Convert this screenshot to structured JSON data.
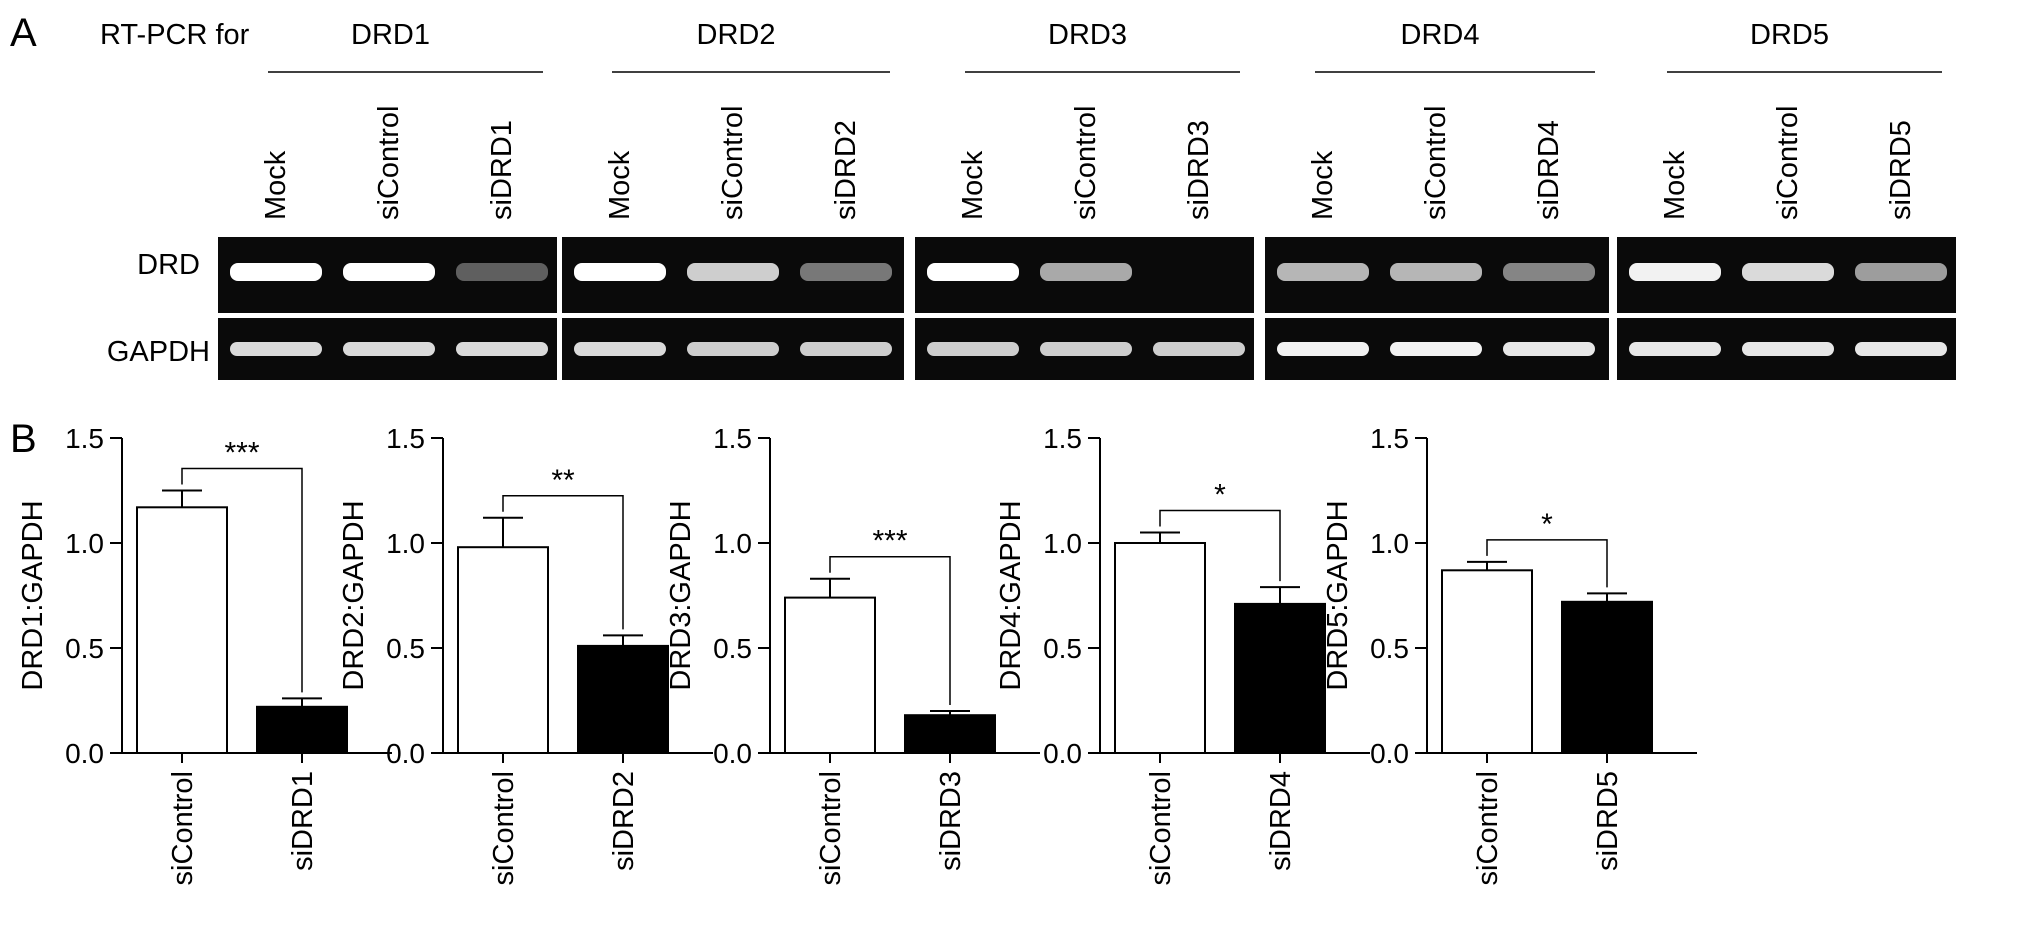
{
  "panels": {
    "a_label": "A",
    "b_label": "B"
  },
  "gel": {
    "row_prefix": "RT-PCR for",
    "row_labels": [
      "DRD",
      "GAPDH"
    ],
    "groups": [
      {
        "target": "DRD1",
        "lanes": [
          "Mock",
          "siControl",
          "siDRD1"
        ],
        "drd_band_intensity": [
          1.0,
          1.0,
          0.35
        ],
        "gapdh_band_intensity": [
          0.85,
          0.85,
          0.85
        ]
      },
      {
        "target": "DRD2",
        "lanes": [
          "Mock",
          "siControl",
          "siDRD2"
        ],
        "drd_band_intensity": [
          1.0,
          0.8,
          0.45
        ],
        "gapdh_band_intensity": [
          0.85,
          0.8,
          0.8
        ]
      },
      {
        "target": "DRD3",
        "lanes": [
          "Mock",
          "siControl",
          "siDRD3"
        ],
        "drd_band_intensity": [
          1.0,
          0.65,
          0.0
        ],
        "gapdh_band_intensity": [
          0.8,
          0.8,
          0.8
        ]
      },
      {
        "target": "DRD4",
        "lanes": [
          "Mock",
          "siControl",
          "siDRD4"
        ],
        "drd_band_intensity": [
          0.7,
          0.7,
          0.5
        ],
        "gapdh_band_intensity": [
          0.95,
          0.95,
          0.9
        ]
      },
      {
        "target": "DRD5",
        "lanes": [
          "Mock",
          "siControl",
          "siDRD5"
        ],
        "drd_band_intensity": [
          0.95,
          0.85,
          0.6
        ],
        "gapdh_band_intensity": [
          0.9,
          0.9,
          0.9
        ]
      }
    ]
  },
  "colors": {
    "gel_background": "#0a0a0a",
    "bar_control": "#ffffff",
    "bar_knockdown": "#000000"
  },
  "chart_data": [
    {
      "type": "bar",
      "categories": [
        "siControl",
        "siDRD1"
      ],
      "values": [
        1.17,
        0.22
      ],
      "errors": [
        0.08,
        0.04
      ],
      "ylabel": "DRD1:GAPDH",
      "ylim": [
        0,
        1.5
      ],
      "yticks": [
        "0.0",
        "0.5",
        "1.0",
        "1.5"
      ],
      "significance": "***"
    },
    {
      "type": "bar",
      "categories": [
        "siControl",
        "siDRD2"
      ],
      "values": [
        0.98,
        0.51
      ],
      "errors": [
        0.14,
        0.05
      ],
      "ylabel": "DRD2:GAPDH",
      "ylim": [
        0,
        1.5
      ],
      "yticks": [
        "0.0",
        "0.5",
        "1.0",
        "1.5"
      ],
      "significance": "**"
    },
    {
      "type": "bar",
      "categories": [
        "siControl",
        "siDRD3"
      ],
      "values": [
        0.74,
        0.18
      ],
      "errors": [
        0.09,
        0.02
      ],
      "ylabel": "DRD3:GAPDH",
      "ylim": [
        0,
        1.5
      ],
      "yticks": [
        "0.0",
        "0.5",
        "1.0",
        "1.5"
      ],
      "significance": "***"
    },
    {
      "type": "bar",
      "categories": [
        "siControl",
        "siDRD4"
      ],
      "values": [
        1.0,
        0.71
      ],
      "errors": [
        0.05,
        0.08
      ],
      "ylabel": "DRD4:GAPDH",
      "ylim": [
        0,
        1.5
      ],
      "yticks": [
        "0.0",
        "0.5",
        "1.0",
        "1.5"
      ],
      "significance": "*"
    },
    {
      "type": "bar",
      "categories": [
        "siControl",
        "siDRD5"
      ],
      "values": [
        0.87,
        0.72
      ],
      "errors": [
        0.04,
        0.04
      ],
      "ylabel": "DRD5:GAPDH",
      "ylim": [
        0,
        1.5
      ],
      "yticks": [
        "0.0",
        "0.5",
        "1.0",
        "1.5"
      ],
      "significance": "*"
    }
  ]
}
